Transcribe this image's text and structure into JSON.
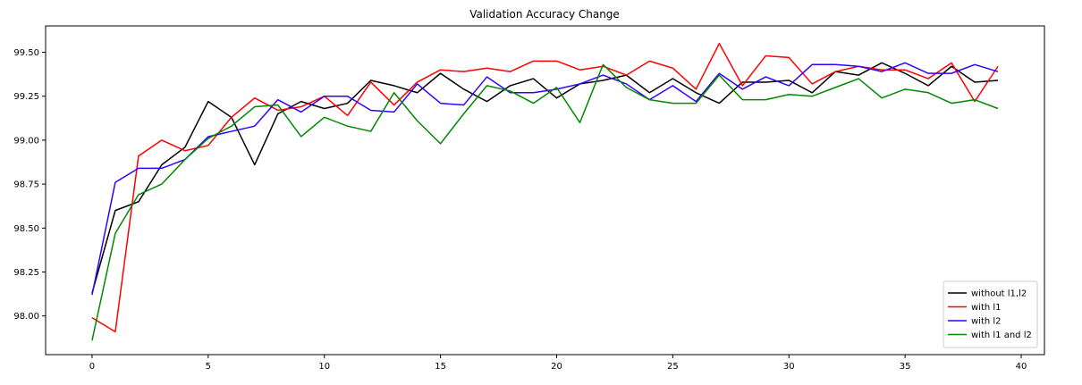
{
  "chart_data": {
    "type": "line",
    "title": "Validation Accuracy Change",
    "xlabel": "",
    "ylabel": "",
    "xlim": [
      -2,
      41
    ],
    "ylim": [
      97.78,
      99.65
    ],
    "xticks": [
      0,
      5,
      10,
      15,
      20,
      25,
      30,
      35,
      40
    ],
    "yticks": [
      98.0,
      98.25,
      98.5,
      98.75,
      99.0,
      99.25,
      99.5
    ],
    "ytick_labels": [
      "98.00",
      "98.25",
      "98.50",
      "98.75",
      "99.00",
      "99.25",
      "99.50"
    ],
    "grid": false,
    "legend_position": "bottom-right",
    "x": [
      0,
      1,
      2,
      3,
      4,
      5,
      6,
      7,
      8,
      9,
      10,
      11,
      12,
      13,
      14,
      15,
      16,
      17,
      18,
      19,
      20,
      21,
      22,
      23,
      24,
      25,
      26,
      27,
      28,
      29,
      30,
      31,
      32,
      33,
      34,
      35,
      36,
      37,
      38,
      39
    ],
    "series": [
      {
        "name": "without l1,l2",
        "color": "#000000",
        "values": [
          98.13,
          98.6,
          98.65,
          98.86,
          98.96,
          99.22,
          99.13,
          98.86,
          99.15,
          99.22,
          99.18,
          99.21,
          99.34,
          99.31,
          99.27,
          99.38,
          99.29,
          99.22,
          99.31,
          99.35,
          99.24,
          99.32,
          99.34,
          99.37,
          99.27,
          99.35,
          99.27,
          99.21,
          99.33,
          99.33,
          99.34,
          99.27,
          99.39,
          99.37,
          99.44,
          99.38,
          99.31,
          99.42,
          99.33,
          99.34
        ]
      },
      {
        "name": "with l1",
        "color": "#ff0000",
        "values": [
          97.99,
          97.91,
          98.91,
          99.0,
          98.94,
          98.97,
          99.13,
          99.24,
          99.17,
          99.19,
          99.25,
          99.14,
          99.33,
          99.2,
          99.33,
          99.4,
          99.39,
          99.41,
          99.39,
          99.45,
          99.45,
          99.4,
          99.42,
          99.37,
          99.45,
          99.41,
          99.29,
          99.55,
          99.31,
          99.48,
          99.47,
          99.32,
          99.39,
          99.42,
          99.4,
          99.4,
          99.35,
          99.44,
          99.22,
          99.42
        ]
      },
      {
        "name": "with l2",
        "color": "#3300ff",
        "values": [
          98.12,
          98.76,
          98.84,
          98.84,
          98.89,
          99.02,
          99.05,
          99.08,
          99.23,
          99.16,
          99.25,
          99.25,
          99.17,
          99.16,
          99.32,
          99.21,
          99.2,
          99.36,
          99.27,
          99.27,
          99.29,
          99.32,
          99.37,
          99.32,
          99.23,
          99.31,
          99.22,
          99.38,
          99.29,
          99.36,
          99.31,
          99.43,
          99.43,
          99.42,
          99.39,
          99.44,
          99.38,
          99.38,
          99.43,
          99.39
        ]
      },
      {
        "name": "with l1 and l2",
        "color": "#008800",
        "values": [
          97.86,
          98.47,
          98.69,
          98.75,
          98.89,
          99.01,
          99.08,
          99.19,
          99.2,
          99.02,
          99.13,
          99.08,
          99.05,
          99.27,
          99.11,
          98.98,
          99.15,
          99.31,
          99.28,
          99.21,
          99.3,
          99.1,
          99.43,
          99.3,
          99.23,
          99.21,
          99.21,
          99.37,
          99.23,
          99.23,
          99.26,
          99.25,
          99.3,
          99.35,
          99.24,
          99.29,
          99.27,
          99.21,
          99.23,
          99.18
        ]
      }
    ]
  }
}
